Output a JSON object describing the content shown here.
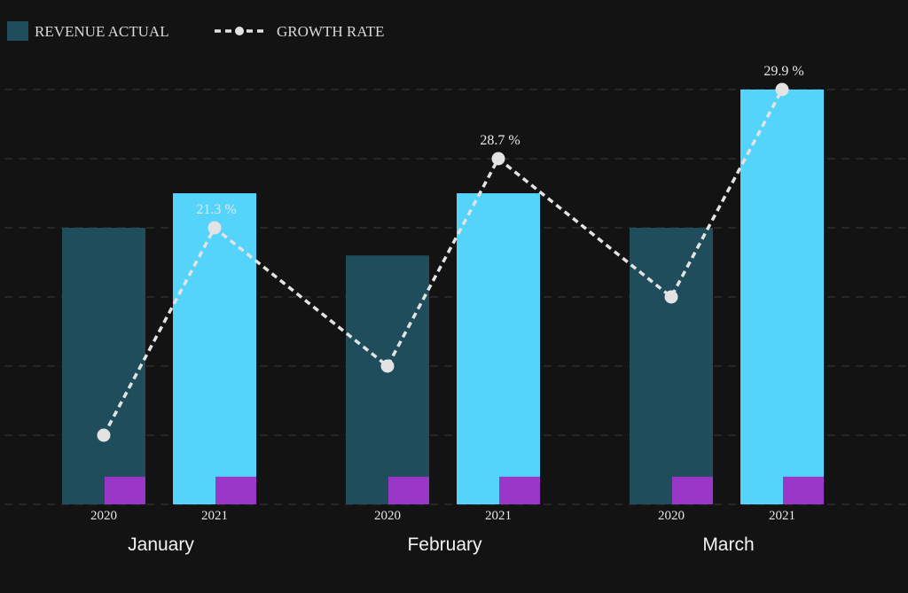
{
  "colors": {
    "background": "#131313",
    "bar_2020": "#1f4d5b",
    "bar_2021": "#54d4fb",
    "bar_marker": "#9a37c9",
    "growth_line": "#e3e3e3",
    "grid": "#3a3a3a"
  },
  "legend": {
    "revenue_label": "REVENUE ACTUAL",
    "growth_label": "GROWTH RATE"
  },
  "chart_data": {
    "type": "bar",
    "title": "",
    "xlabel": "",
    "ylabel": "",
    "ylim": [
      0,
      6
    ],
    "grid": true,
    "legend_position": "top-left",
    "groups": [
      "January",
      "February",
      "March"
    ],
    "subcategories": [
      "2020",
      "2021"
    ],
    "series": [
      {
        "name": "REVENUE ACTUAL",
        "type": "bar",
        "values": [
          [
            4.0,
            4.5
          ],
          [
            3.6,
            4.5
          ],
          [
            4.0,
            6.0
          ]
        ]
      },
      {
        "name": "GROWTH RATE",
        "type": "line",
        "values": [
          [
            1.0,
            4.0
          ],
          [
            2.0,
            5.0
          ],
          [
            3.0,
            6.0
          ]
        ]
      }
    ],
    "bar_markers": [
      [
        0.4,
        0.4
      ],
      [
        0.4,
        0.4
      ],
      [
        0.4,
        0.4
      ]
    ],
    "annotations": [
      {
        "group": 0,
        "sub": 1,
        "text": "21.3 %"
      },
      {
        "group": 1,
        "sub": 1,
        "text": "28.7 %"
      },
      {
        "group": 2,
        "sub": 1,
        "text": "29.9 %"
      }
    ]
  }
}
